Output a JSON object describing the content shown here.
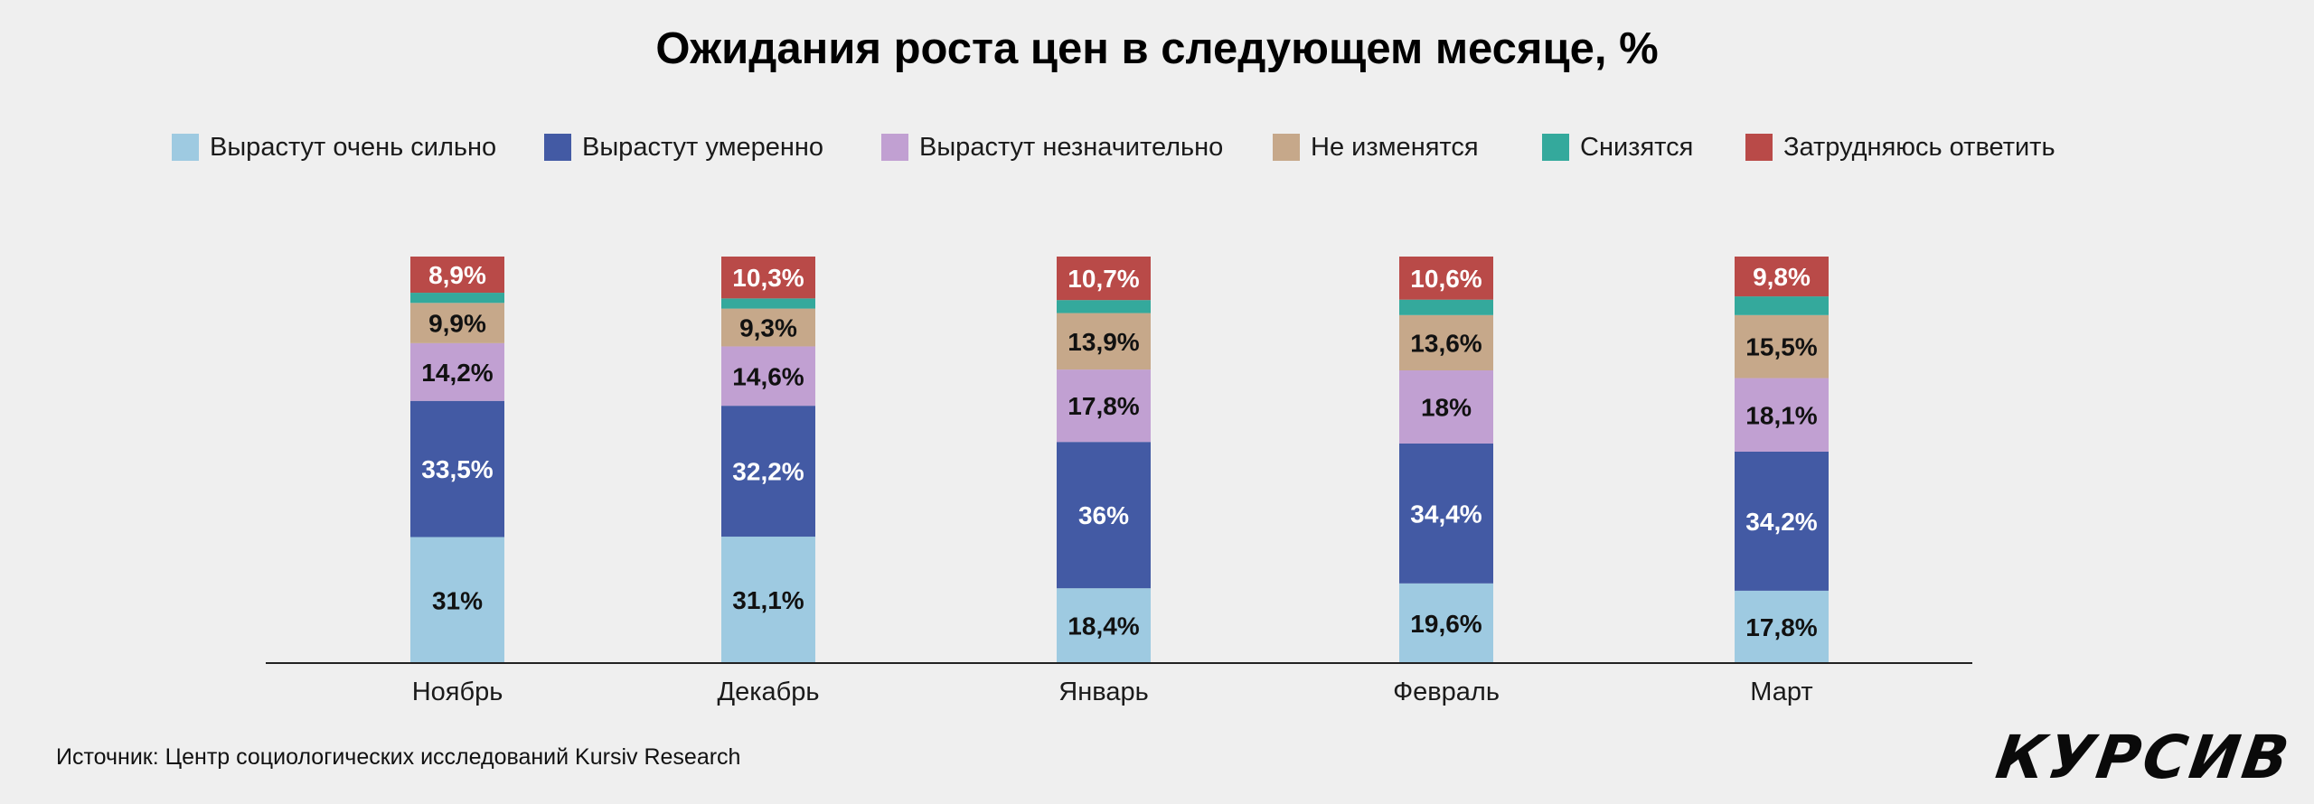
{
  "chart_data": {
    "type": "bar",
    "stacked": true,
    "title": "Ожидания роста цен в следующем месяце, %",
    "categories": [
      "Ноябрь",
      "Декабрь",
      "Январь",
      "Февраль",
      "Март"
    ],
    "series": [
      {
        "name": "Вырастут очень сильно",
        "color": "#9ecae1",
        "values": [
          31,
          31.1,
          18.4,
          19.6,
          17.8
        ],
        "labels": [
          "31%",
          "31,1%",
          "18,4%",
          "19,6%",
          "17,8%"
        ],
        "label_color": "#111111"
      },
      {
        "name": "Вырастут умеренно",
        "color": "#435aa4",
        "values": [
          33.5,
          32.2,
          36,
          34.4,
          34.2
        ],
        "labels": [
          "33,5%",
          "32,2%",
          "36%",
          "34,4%",
          "34,2%"
        ],
        "label_color": "#ffffff"
      },
      {
        "name": "Вырастут незначительно",
        "color": "#c1a0d2",
        "values": [
          14.2,
          14.6,
          17.8,
          18,
          18.1
        ],
        "labels": [
          "14,2%",
          "14,6%",
          "17,8%",
          "18%",
          "18,1%"
        ],
        "label_color": "#111111"
      },
      {
        "name": "Не изменятся",
        "color": "#c6a88a",
        "values": [
          9.9,
          9.3,
          13.9,
          13.6,
          15.5
        ],
        "labels": [
          "9,9%",
          "9,3%",
          "13,9%",
          "13,6%",
          "15,5%"
        ],
        "label_color": "#111111"
      },
      {
        "name": "Снизятся",
        "color": "#34a99c",
        "values": [
          2.5,
          2.5,
          3.2,
          3.8,
          4.6
        ],
        "labels": [
          "",
          "",
          "",
          "",
          ""
        ],
        "label_color": "#111111"
      },
      {
        "name": "Затрудняюсь ответить",
        "color": "#b94a48",
        "values": [
          8.9,
          10.3,
          10.7,
          10.6,
          9.8
        ],
        "labels": [
          "8,9%",
          "10,3%",
          "10,7%",
          "10,6%",
          "9,8%"
        ],
        "label_color": "#ffffff"
      }
    ],
    "ylim": [
      0,
      100
    ],
    "xlabel": "",
    "ylabel": ""
  },
  "source": "Источник: Центр социологических исследований Kursiv Research",
  "logo": "КУРСИВ"
}
